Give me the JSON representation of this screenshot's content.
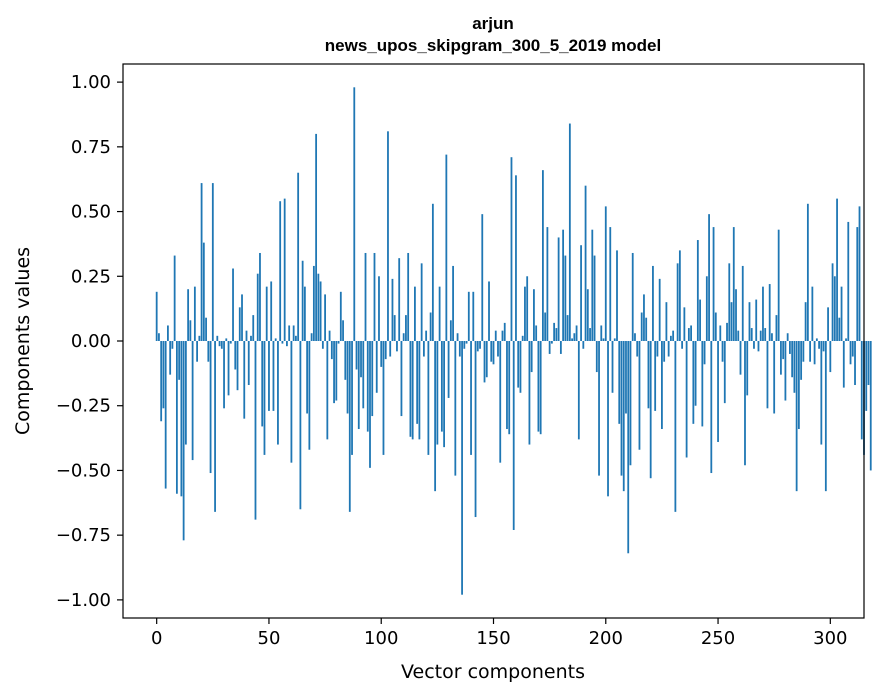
{
  "chart_data": {
    "type": "bar",
    "title_lines": [
      "arjun",
      "news_upos_skipgram_300_5_2019 model"
    ],
    "xlabel": "Vector components",
    "ylabel": "Components values",
    "xlim": [
      -15,
      315
    ],
    "ylim": [
      -1.07,
      1.07
    ],
    "xticks": [
      0,
      50,
      100,
      150,
      200,
      250,
      300
    ],
    "xtick_labels": [
      "0",
      "50",
      "100",
      "150",
      "200",
      "250",
      "300"
    ],
    "yticks": [
      1.0,
      0.75,
      0.5,
      0.25,
      0.0,
      -0.25,
      -0.5,
      -0.75,
      -1.0
    ],
    "ytick_labels": [
      "1.00",
      "0.75",
      "0.50",
      "0.25",
      "0.00",
      "−0.25",
      "−0.50",
      "−0.75",
      "−1.00"
    ],
    "grid": false,
    "bar_color": "#1f77b4",
    "values": [
      0.19,
      0.03,
      -0.31,
      -0.26,
      -0.57,
      0.06,
      -0.13,
      -0.03,
      0.33,
      -0.59,
      -0.15,
      -0.6,
      -0.77,
      -0.4,
      0.2,
      0.08,
      -0.46,
      0.21,
      -0.08,
      0.02,
      0.61,
      0.38,
      0.09,
      -0.08,
      -0.51,
      0.61,
      -0.66,
      0.02,
      -0.02,
      -0.03,
      -0.26,
      0.01,
      -0.21,
      -0.01,
      0.28,
      -0.11,
      -0.19,
      0.13,
      0.18,
      -0.3,
      0.04,
      -0.17,
      0.02,
      0.1,
      -0.69,
      0.26,
      0.34,
      -0.33,
      -0.44,
      0.21,
      -0.27,
      0.23,
      -0.27,
      0.01,
      -0.4,
      0.54,
      -0.01,
      0.55,
      -0.02,
      0.06,
      -0.47,
      0.06,
      0.02,
      0.65,
      -0.65,
      0.31,
      0.21,
      -0.28,
      -0.42,
      0.03,
      0.29,
      0.8,
      0.26,
      0.23,
      -0.03,
      0.18,
      -0.38,
      0.04,
      -0.07,
      -0.24,
      -0.23,
      -0.01,
      0.19,
      0.08,
      -0.15,
      -0.28,
      -0.66,
      -0.44,
      0.98,
      -0.11,
      -0.34,
      -0.14,
      -0.26,
      0.34,
      -0.35,
      -0.49,
      -0.29,
      0.34,
      -0.2,
      0.25,
      -0.1,
      -0.44,
      -0.07,
      0.81,
      -0.06,
      0.24,
      0.1,
      -0.04,
      0.32,
      -0.29,
      0.03,
      0.1,
      0.34,
      -0.37,
      -0.38,
      0.21,
      -0.32,
      -0.38,
      0.3,
      -0.06,
      0.04,
      -0.44,
      0.11,
      0.53,
      -0.58,
      -0.4,
      0.21,
      -0.35,
      -0.41,
      0.72,
      -0.22,
      0.08,
      0.29,
      -0.52,
      0.03,
      -0.06,
      -0.98,
      -0.03,
      -0.01,
      0.19,
      -0.44,
      0.19,
      -0.68,
      -0.04,
      -0.03,
      0.49,
      -0.16,
      -0.14,
      0.23,
      -0.08,
      -0.09,
      0.04,
      -0.06,
      -0.47,
      0.04,
      0.07,
      -0.34,
      -0.36,
      0.71,
      -0.73,
      0.64,
      -0.18,
      -0.2,
      0.02,
      0.21,
      0.25,
      -0.4,
      -0.12,
      0.2,
      0.06,
      -0.35,
      -0.36,
      0.66,
      0.11,
      0.44,
      -0.05,
      -0.01,
      0.07,
      0.05,
      0.4,
      -0.05,
      0.43,
      0.33,
      0.1,
      0.84,
      0.01,
      0.03,
      0.06,
      -0.38,
      0.37,
      -0.03,
      0.6,
      0.2,
      0.05,
      0.43,
      0.33,
      -0.12,
      -0.52,
      0.06,
      0.01,
      0.52,
      -0.6,
      0.44,
      -0.2,
      0.01,
      0.35,
      -0.32,
      -0.52,
      -0.58,
      -0.28,
      -0.82,
      -0.48,
      0.34,
      0.03,
      -0.06,
      -0.42,
      0.11,
      0.18,
      0.09,
      -0.26,
      -0.53,
      0.29,
      -0.27,
      -0.06,
      0.24,
      -0.34,
      -0.08,
      0.15,
      -0.06,
      0.02,
      0.04,
      -0.66,
      0.3,
      0.35,
      -0.03,
      0.13,
      -0.45,
      0.05,
      0.06,
      -0.32,
      -0.25,
      0.39,
      0.16,
      -0.33,
      -0.09,
      0.25,
      0.49,
      -0.51,
      0.44,
      0.11,
      -0.39,
      0.06,
      -0.08,
      -0.24,
      0.07,
      0.3,
      0.15,
      0.44,
      0.2,
      0.04,
      -0.13,
      0.29,
      -0.48,
      -0.21,
      0.15,
      0.05,
      -0.03,
      0.16,
      -0.04,
      0.04,
      0.21,
      0.05,
      -0.26,
      0.22,
      0.03,
      -0.28,
      0.1,
      0.43,
      -0.13,
      -0.07,
      -0.23,
      0.03,
      -0.05,
      -0.14,
      -0.2,
      -0.58,
      -0.34,
      -0.15,
      -0.08,
      0.15,
      0.53,
      -0.08,
      0.21,
      -0.09,
      0.01,
      -0.03,
      -0.4,
      -0.04,
      -0.58,
      0.13,
      -0.12,
      0.3,
      0.25,
      0.55,
      0.09,
      0.21,
      -0.18,
      0.01,
      0.46,
      -0.09,
      -0.06,
      -0.17,
      0.44,
      0.52,
      -0.38,
      -0.44,
      -0.27,
      -0.17,
      -0.5
    ]
  }
}
